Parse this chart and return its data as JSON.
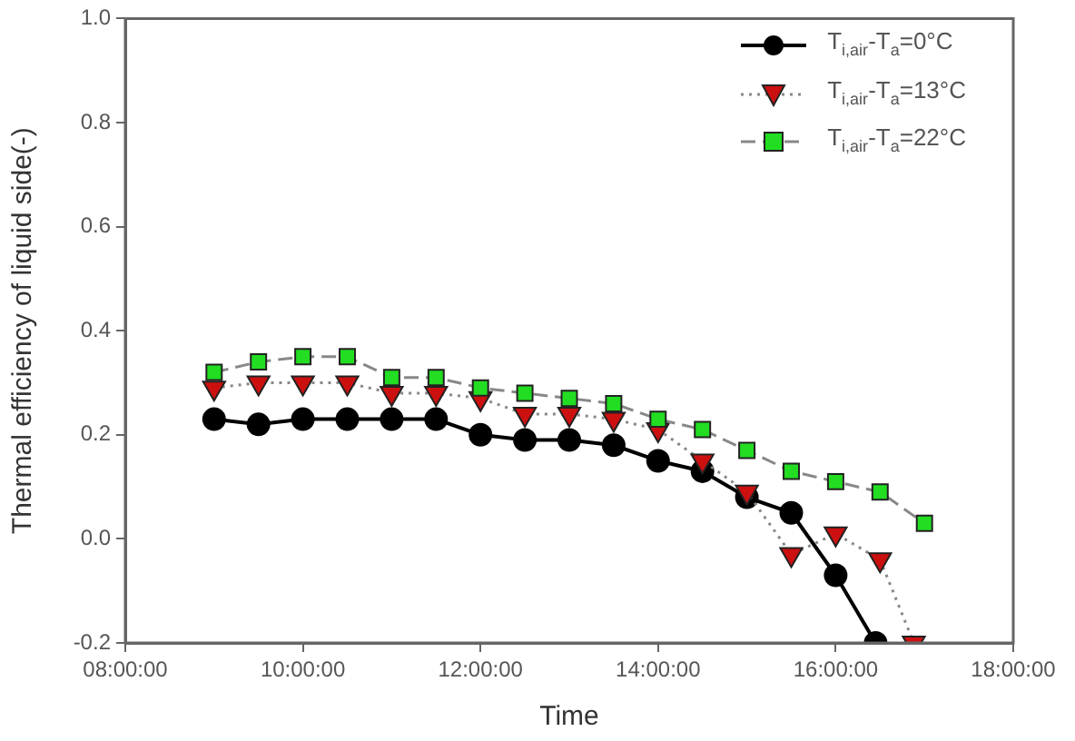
{
  "chart_data": {
    "type": "line",
    "xlabel": "Time",
    "ylabel": "Thermal efficiency of liquid side(-)",
    "xlim": [
      8,
      18
    ],
    "xticks": [
      {
        "value": 8,
        "label": "08:00:00"
      },
      {
        "value": 10,
        "label": "10:00:00"
      },
      {
        "value": 12,
        "label": "12:00:00"
      },
      {
        "value": 14,
        "label": "14:00:00"
      },
      {
        "value": 16,
        "label": "16:00:00"
      },
      {
        "value": 18,
        "label": "18:00:00"
      }
    ],
    "ylim": [
      -0.2,
      1.0
    ],
    "yticks": [
      -0.2,
      {
        "value": 0,
        "label": "0.0"
      },
      0.2,
      0.4,
      0.6,
      0.8,
      {
        "value": 1,
        "label": "1.0"
      }
    ],
    "grid": false,
    "legend": "top right",
    "series": [
      {
        "name": "T$_{i,air}$-T$_{a}$=0°C",
        "color": "#000000",
        "marker": "circle",
        "line_style": "solid",
        "x": [
          9,
          9.5,
          10,
          10.5,
          11,
          11.5,
          12,
          12.5,
          13,
          13.5,
          14,
          14.5,
          15,
          15.5,
          16,
          16.45
        ],
        "values": [
          0.23,
          0.22,
          0.23,
          0.23,
          0.23,
          0.23,
          0.2,
          0.19,
          0.19,
          0.18,
          0.15,
          0.13,
          0.08,
          0.05,
          -0.07,
          -0.2
        ]
      },
      {
        "name": "T$_{i,air}$-T$_{a}$=13°C",
        "color": "#cc1010",
        "marker": "triangle",
        "line_style": "dotted",
        "x": [
          9,
          9.5,
          10,
          10.5,
          11,
          11.5,
          12,
          12.5,
          13,
          13.5,
          14,
          14.5,
          15,
          15.5,
          16,
          16.5,
          16.88
        ],
        "values": [
          0.29,
          0.3,
          0.3,
          0.3,
          0.28,
          0.28,
          0.27,
          0.24,
          0.24,
          0.23,
          0.21,
          0.15,
          0.09,
          -0.03,
          0.01,
          -0.04,
          -0.2
        ]
      },
      {
        "name": "T$_{i,air}$-T$_{a}$=22°C",
        "color": "#22dd22",
        "marker": "square",
        "line_style": "dashed",
        "x": [
          9,
          9.5,
          10,
          10.5,
          11,
          11.5,
          12,
          12.5,
          13,
          13.5,
          14,
          14.5,
          15,
          15.5,
          16,
          16.5,
          17
        ],
        "values": [
          0.32,
          0.34,
          0.35,
          0.35,
          0.31,
          0.31,
          0.29,
          0.28,
          0.27,
          0.26,
          0.23,
          0.21,
          0.17,
          0.13,
          0.11,
          0.09,
          0.03
        ]
      }
    ]
  }
}
